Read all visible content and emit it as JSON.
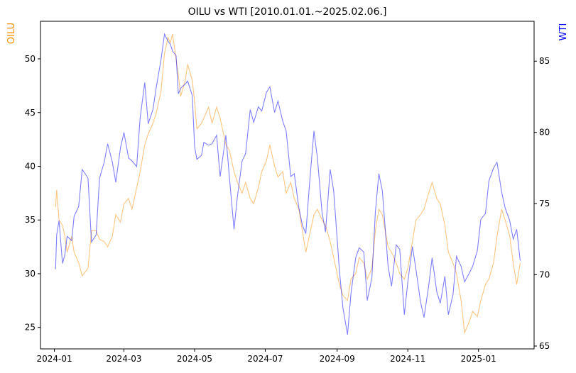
{
  "chart_data": {
    "type": "line",
    "title": "OILU vs WTI [2010.01.01.~2025.02.06.]",
    "xlabel": "",
    "x_tick_labels": [
      "2024-01",
      "2024-03",
      "2024-05",
      "2024-07",
      "2024-09",
      "2024-11",
      "2025-01"
    ],
    "x_tick_dates": [
      "2024-01-01",
      "2024-03-01",
      "2024-05-01",
      "2024-07-01",
      "2024-09-01",
      "2024-11-01",
      "2025-01-01"
    ],
    "xlim": [
      "2023-12-20",
      "2025-02-18"
    ],
    "grid": false,
    "colors": {
      "OILU": "#ff8c00",
      "WTI": "#0000ff"
    },
    "left_axis": {
      "label": "OILU",
      "ylim": [
        23,
        53.5
      ],
      "ticks": [
        25,
        30,
        35,
        40,
        45,
        50
      ]
    },
    "right_axis": {
      "label": "WTI",
      "ylim": [
        64.8,
        87.8
      ],
      "ticks": [
        65,
        70,
        75,
        80,
        85
      ]
    },
    "series": [
      {
        "name": "OILU",
        "axis": "left",
        "color": "#ff8c00",
        "points": [
          [
            "2024-01-02",
            36.2
          ],
          [
            "2024-01-03",
            37.8
          ],
          [
            "2024-01-05",
            35.0
          ],
          [
            "2024-01-08",
            34.5
          ],
          [
            "2024-01-10",
            33.5
          ],
          [
            "2024-01-12",
            32.0
          ],
          [
            "2024-01-16",
            33.5
          ],
          [
            "2024-01-18",
            32.0
          ],
          [
            "2024-01-22",
            31.0
          ],
          [
            "2024-01-25",
            29.8
          ],
          [
            "2024-01-30",
            30.5
          ],
          [
            "2024-02-02",
            34.0
          ],
          [
            "2024-02-06",
            34.0
          ],
          [
            "2024-02-09",
            33.2
          ],
          [
            "2024-02-13",
            33.0
          ],
          [
            "2024-02-16",
            32.5
          ],
          [
            "2024-02-20",
            33.5
          ],
          [
            "2024-02-23",
            35.5
          ],
          [
            "2024-02-27",
            34.8
          ],
          [
            "2024-03-01",
            36.5
          ],
          [
            "2024-03-05",
            37.0
          ],
          [
            "2024-03-08",
            36.0
          ],
          [
            "2024-03-12",
            38.0
          ],
          [
            "2024-03-15",
            39.5
          ],
          [
            "2024-03-19",
            42.0
          ],
          [
            "2024-03-22",
            43.0
          ],
          [
            "2024-03-26",
            44.0
          ],
          [
            "2024-03-29",
            45.0
          ],
          [
            "2024-04-02",
            47.0
          ],
          [
            "2024-04-05",
            50.5
          ],
          [
            "2024-04-08",
            52.0
          ],
          [
            "2024-04-10",
            51.5
          ],
          [
            "2024-04-12",
            52.3
          ],
          [
            "2024-04-15",
            50.0
          ],
          [
            "2024-04-17",
            48.5
          ],
          [
            "2024-04-19",
            46.5
          ],
          [
            "2024-04-23",
            48.0
          ],
          [
            "2024-04-25",
            49.5
          ],
          [
            "2024-04-29",
            48.0
          ],
          [
            "2024-05-01",
            46.0
          ],
          [
            "2024-05-03",
            43.5
          ],
          [
            "2024-05-07",
            44.0
          ],
          [
            "2024-05-09",
            44.5
          ],
          [
            "2024-05-13",
            45.5
          ],
          [
            "2024-05-16",
            44.0
          ],
          [
            "2024-05-20",
            45.5
          ],
          [
            "2024-05-23",
            44.5
          ],
          [
            "2024-05-28",
            42.0
          ],
          [
            "2024-05-31",
            41.5
          ],
          [
            "2024-06-04",
            39.5
          ],
          [
            "2024-06-07",
            38.5
          ],
          [
            "2024-06-11",
            37.5
          ],
          [
            "2024-06-14",
            38.5
          ],
          [
            "2024-06-18",
            37.0
          ],
          [
            "2024-06-21",
            36.5
          ],
          [
            "2024-06-25",
            38.0
          ],
          [
            "2024-06-28",
            39.5
          ],
          [
            "2024-07-02",
            40.5
          ],
          [
            "2024-07-05",
            42.0
          ],
          [
            "2024-07-09",
            40.0
          ],
          [
            "2024-07-12",
            39.0
          ],
          [
            "2024-07-16",
            39.5
          ],
          [
            "2024-07-19",
            37.5
          ],
          [
            "2024-07-23",
            38.5
          ],
          [
            "2024-07-26",
            37.0
          ],
          [
            "2024-07-30",
            36.0
          ],
          [
            "2024-08-02",
            34.0
          ],
          [
            "2024-08-05",
            32.0
          ],
          [
            "2024-08-08",
            33.5
          ],
          [
            "2024-08-12",
            35.5
          ],
          [
            "2024-08-15",
            36.0
          ],
          [
            "2024-08-19",
            35.0
          ],
          [
            "2024-08-22",
            34.5
          ],
          [
            "2024-08-26",
            33.0
          ],
          [
            "2024-08-29",
            31.5
          ],
          [
            "2024-09-03",
            29.0
          ],
          [
            "2024-09-06",
            28.0
          ],
          [
            "2024-09-10",
            27.5
          ],
          [
            "2024-09-13",
            29.5
          ],
          [
            "2024-09-17",
            30.0
          ],
          [
            "2024-09-20",
            31.5
          ],
          [
            "2024-09-24",
            31.0
          ],
          [
            "2024-09-27",
            29.5
          ],
          [
            "2024-10-01",
            30.5
          ],
          [
            "2024-10-04",
            34.0
          ],
          [
            "2024-10-07",
            36.0
          ],
          [
            "2024-10-10",
            35.5
          ],
          [
            "2024-10-15",
            32.5
          ],
          [
            "2024-10-18",
            32.0
          ],
          [
            "2024-10-22",
            31.0
          ],
          [
            "2024-10-25",
            30.0
          ],
          [
            "2024-10-29",
            29.5
          ],
          [
            "2024-11-01",
            30.5
          ],
          [
            "2024-11-05",
            33.0
          ],
          [
            "2024-11-08",
            35.0
          ],
          [
            "2024-11-12",
            35.5
          ],
          [
            "2024-11-15",
            36.0
          ],
          [
            "2024-11-19",
            37.5
          ],
          [
            "2024-11-22",
            38.5
          ],
          [
            "2024-11-26",
            37.0
          ],
          [
            "2024-11-29",
            36.5
          ],
          [
            "2024-12-03",
            34.5
          ],
          [
            "2024-12-06",
            32.0
          ],
          [
            "2024-12-10",
            31.0
          ],
          [
            "2024-12-13",
            30.0
          ],
          [
            "2024-12-17",
            27.5
          ],
          [
            "2024-12-20",
            24.5
          ],
          [
            "2024-12-24",
            25.5
          ],
          [
            "2024-12-27",
            26.5
          ],
          [
            "2024-12-31",
            26.0
          ],
          [
            "2025-01-03",
            27.5
          ],
          [
            "2025-01-07",
            29.0
          ],
          [
            "2025-01-10",
            29.5
          ],
          [
            "2025-01-14",
            31.0
          ],
          [
            "2025-01-17",
            33.5
          ],
          [
            "2025-01-21",
            36.0
          ],
          [
            "2025-01-24",
            35.0
          ],
          [
            "2025-01-28",
            33.5
          ],
          [
            "2025-01-31",
            31.0
          ],
          [
            "2025-02-03",
            29.0
          ],
          [
            "2025-02-06",
            31.0
          ]
        ]
      },
      {
        "name": "WTI",
        "axis": "right",
        "color": "#0000ff",
        "points": [
          [
            "2024-01-02",
            70.4
          ],
          [
            "2024-01-03",
            72.8
          ],
          [
            "2024-01-05",
            73.8
          ],
          [
            "2024-01-08",
            70.8
          ],
          [
            "2024-01-10",
            71.4
          ],
          [
            "2024-01-12",
            72.7
          ],
          [
            "2024-01-16",
            72.4
          ],
          [
            "2024-01-18",
            74.1
          ],
          [
            "2024-01-22",
            74.8
          ],
          [
            "2024-01-25",
            77.4
          ],
          [
            "2024-01-30",
            76.8
          ],
          [
            "2024-02-02",
            72.3
          ],
          [
            "2024-02-06",
            72.8
          ],
          [
            "2024-02-09",
            76.8
          ],
          [
            "2024-02-13",
            77.9
          ],
          [
            "2024-02-16",
            79.2
          ],
          [
            "2024-02-20",
            77.9
          ],
          [
            "2024-02-23",
            76.5
          ],
          [
            "2024-02-27",
            78.9
          ],
          [
            "2024-03-01",
            80.0
          ],
          [
            "2024-03-05",
            78.2
          ],
          [
            "2024-03-08",
            78.0
          ],
          [
            "2024-03-12",
            77.6
          ],
          [
            "2024-03-15",
            81.0
          ],
          [
            "2024-03-19",
            83.5
          ],
          [
            "2024-03-22",
            80.6
          ],
          [
            "2024-03-26",
            81.6
          ],
          [
            "2024-03-29",
            83.2
          ],
          [
            "2024-04-02",
            85.1
          ],
          [
            "2024-04-05",
            86.9
          ],
          [
            "2024-04-08",
            86.4
          ],
          [
            "2024-04-10",
            86.2
          ],
          [
            "2024-04-12",
            85.7
          ],
          [
            "2024-04-15",
            85.4
          ],
          [
            "2024-04-17",
            82.7
          ],
          [
            "2024-04-19",
            83.1
          ],
          [
            "2024-04-23",
            83.4
          ],
          [
            "2024-04-25",
            83.6
          ],
          [
            "2024-04-29",
            82.6
          ],
          [
            "2024-05-01",
            79.0
          ],
          [
            "2024-05-03",
            78.1
          ],
          [
            "2024-05-07",
            78.4
          ],
          [
            "2024-05-09",
            79.3
          ],
          [
            "2024-05-13",
            79.1
          ],
          [
            "2024-05-16",
            79.2
          ],
          [
            "2024-05-20",
            79.8
          ],
          [
            "2024-05-23",
            76.9
          ],
          [
            "2024-05-28",
            79.8
          ],
          [
            "2024-05-31",
            76.9
          ],
          [
            "2024-06-04",
            73.2
          ],
          [
            "2024-06-07",
            75.5
          ],
          [
            "2024-06-11",
            78.0
          ],
          [
            "2024-06-14",
            78.5
          ],
          [
            "2024-06-18",
            81.6
          ],
          [
            "2024-06-21",
            80.7
          ],
          [
            "2024-06-25",
            81.8
          ],
          [
            "2024-06-28",
            81.5
          ],
          [
            "2024-07-02",
            82.8
          ],
          [
            "2024-07-05",
            83.2
          ],
          [
            "2024-07-09",
            81.4
          ],
          [
            "2024-07-12",
            82.2
          ],
          [
            "2024-07-16",
            80.8
          ],
          [
            "2024-07-19",
            80.1
          ],
          [
            "2024-07-23",
            76.9
          ],
          [
            "2024-07-26",
            77.1
          ],
          [
            "2024-07-30",
            74.7
          ],
          [
            "2024-08-02",
            73.5
          ],
          [
            "2024-08-05",
            72.9
          ],
          [
            "2024-08-08",
            76.2
          ],
          [
            "2024-08-12",
            80.1
          ],
          [
            "2024-08-15",
            78.2
          ],
          [
            "2024-08-19",
            74.4
          ],
          [
            "2024-08-22",
            73.0
          ],
          [
            "2024-08-26",
            77.4
          ],
          [
            "2024-08-29",
            75.9
          ],
          [
            "2024-09-03",
            70.3
          ],
          [
            "2024-09-06",
            67.7
          ],
          [
            "2024-09-10",
            65.8
          ],
          [
            "2024-09-13",
            68.7
          ],
          [
            "2024-09-17",
            71.2
          ],
          [
            "2024-09-20",
            71.9
          ],
          [
            "2024-09-24",
            71.6
          ],
          [
            "2024-09-27",
            68.2
          ],
          [
            "2024-10-01",
            69.8
          ],
          [
            "2024-10-04",
            74.4
          ],
          [
            "2024-10-07",
            77.1
          ],
          [
            "2024-10-10",
            75.9
          ],
          [
            "2024-10-15",
            70.6
          ],
          [
            "2024-10-18",
            69.2
          ],
          [
            "2024-10-22",
            72.1
          ],
          [
            "2024-10-25",
            71.8
          ],
          [
            "2024-10-29",
            67.2
          ],
          [
            "2024-11-01",
            69.5
          ],
          [
            "2024-11-05",
            71.99
          ],
          [
            "2024-11-08",
            70.4
          ],
          [
            "2024-11-12",
            68.1
          ],
          [
            "2024-11-15",
            67.0
          ],
          [
            "2024-11-19",
            69.2
          ],
          [
            "2024-11-22",
            71.2
          ],
          [
            "2024-11-26",
            68.8
          ],
          [
            "2024-11-29",
            68.0
          ],
          [
            "2024-12-03",
            69.9
          ],
          [
            "2024-12-06",
            67.2
          ],
          [
            "2024-12-10",
            68.6
          ],
          [
            "2024-12-13",
            71.3
          ],
          [
            "2024-12-17",
            70.6
          ],
          [
            "2024-12-20",
            69.5
          ],
          [
            "2024-12-24",
            70.1
          ],
          [
            "2024-12-27",
            70.6
          ],
          [
            "2024-12-31",
            71.7
          ],
          [
            "2025-01-03",
            73.9
          ],
          [
            "2025-01-07",
            74.3
          ],
          [
            "2025-01-10",
            76.6
          ],
          [
            "2025-01-14",
            77.5
          ],
          [
            "2025-01-17",
            77.9
          ],
          [
            "2025-01-21",
            75.8
          ],
          [
            "2025-01-24",
            74.7
          ],
          [
            "2025-01-28",
            73.8
          ],
          [
            "2025-01-31",
            72.5
          ],
          [
            "2025-02-03",
            73.2
          ],
          [
            "2025-02-06",
            71.0
          ]
        ]
      }
    ]
  }
}
